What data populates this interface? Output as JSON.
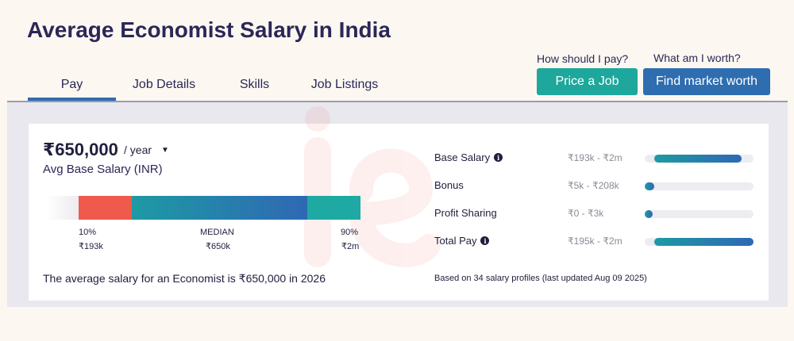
{
  "page": {
    "title": "Average Economist Salary in India"
  },
  "tabs": [
    {
      "label": "Pay",
      "active": true
    },
    {
      "label": "Job Details",
      "active": false
    },
    {
      "label": "Skills",
      "active": false
    },
    {
      "label": "Job Listings",
      "active": false
    }
  ],
  "cta": {
    "price_question": "How should I pay?",
    "price_button": "Price a Job",
    "worth_question": "What am I worth?",
    "worth_button": "Find market worth"
  },
  "salary": {
    "amount": "₹650,000",
    "period": "/ year",
    "subtitle": "Avg Base Salary (INR)",
    "percentiles": [
      {
        "label": "10%",
        "value": "₹193k"
      },
      {
        "label": "MEDIAN",
        "value": "₹650k"
      },
      {
        "label": "90%",
        "value": "₹2m"
      }
    ],
    "summary": "The average salary for an Economist is ₹650,000 in 2026"
  },
  "compensation": {
    "rows": [
      {
        "label": "Base Salary",
        "range": "₹193k - ₹2m",
        "info": true,
        "fill_start": 0.09,
        "fill_end": 0.89
      },
      {
        "label": "Bonus",
        "range": "₹5k - ₹208k",
        "info": false,
        "fill_start": 0.0,
        "fill_end": 0.09
      },
      {
        "label": "Profit Sharing",
        "range": "₹0 - ₹3k",
        "info": false,
        "fill_start": 0.0,
        "fill_end": 0.06
      },
      {
        "label": "Total Pay",
        "range": "₹195k - ₹2m",
        "info": true,
        "fill_start": 0.09,
        "fill_end": 1.0
      }
    ],
    "footnote": "Based on 34 salary profiles (last updated Aug 09 2025)"
  },
  "colors": {
    "accent_teal": "#1ea79c",
    "accent_blue": "#2e6db0",
    "low_segment": "#ef5a4c",
    "title": "#2b2758"
  }
}
